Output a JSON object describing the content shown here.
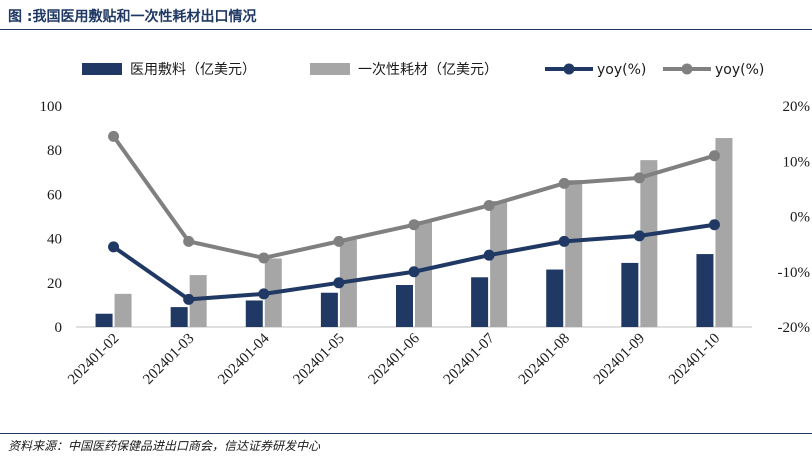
{
  "title": "图  :我国医用敷贴和一次性耗材出口情况",
  "source": "资料来源：中国医药保健品进出口商会，信达证券研发中心",
  "colors": {
    "bar1": "#1f3864",
    "bar2": "#a6a6a6",
    "line1": "#1f3864",
    "line2": "#808080",
    "accent": "#1f3864"
  },
  "chart_data": {
    "type": "bar",
    "categories": [
      "202401-02",
      "202401-03",
      "202401-04",
      "202401-05",
      "202401-06",
      "202401-07",
      "202401-08",
      "202401-09",
      "202401-10"
    ],
    "series": [
      {
        "name": "医用敷料（亿美元）",
        "type": "bar",
        "axis": "left",
        "values": [
          6,
          9,
          12,
          15.5,
          19,
          22.5,
          26,
          29,
          33
        ]
      },
      {
        "name": "一次性耗材（亿美元）",
        "type": "bar",
        "axis": "left",
        "values": [
          15,
          23.5,
          31,
          39.5,
          48,
          57,
          66.5,
          75.5,
          85.5
        ]
      },
      {
        "name": "yoy(%)",
        "type": "line",
        "axis": "right",
        "values": [
          -5.5,
          -15,
          -14,
          -12,
          -10,
          -7,
          -4.5,
          -3.5,
          -1.5
        ]
      },
      {
        "name": "yoy(%)",
        "type": "line",
        "axis": "right",
        "values": [
          14.5,
          -4.5,
          -7.5,
          -4.5,
          -1.5,
          2,
          6,
          7,
          11
        ]
      }
    ],
    "left_axis": {
      "ylim": [
        0,
        100
      ],
      "ticks": [
        0,
        20,
        40,
        60,
        80,
        100
      ]
    },
    "right_axis": {
      "ylim": [
        -20,
        20
      ],
      "ticks": [
        -20,
        -10,
        0,
        10,
        20
      ],
      "tick_labels": [
        "-20%",
        "-10%",
        "0%",
        "10%",
        "20%"
      ]
    },
    "legend_position": "top"
  }
}
